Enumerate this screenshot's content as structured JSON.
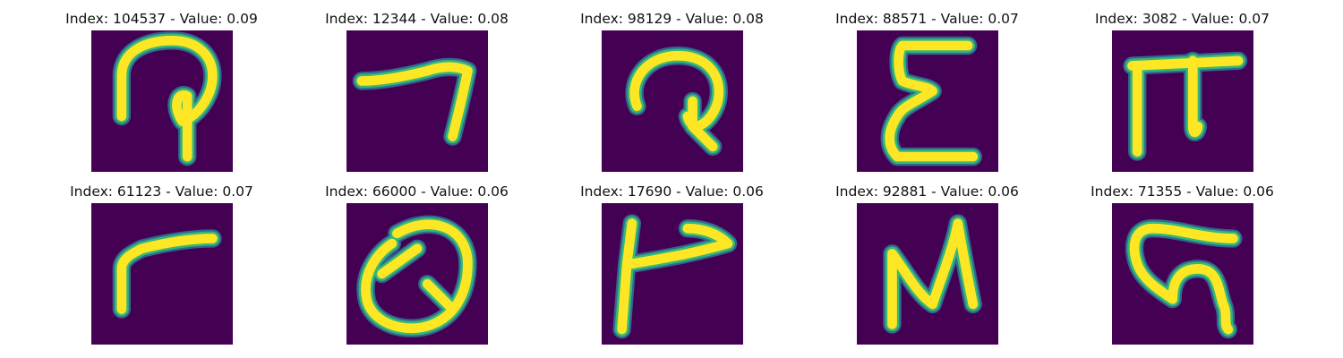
{
  "colors": {
    "background": "#440154",
    "stroke_core": "#fde725",
    "stroke_mid": "#35b779",
    "stroke_edge": "#31688e"
  },
  "panels": [
    {
      "title": "Index: 104537 - Value: 0.09",
      "glyph": "hook-loop-icon"
    },
    {
      "title": "Index: 12344 - Value: 0.08",
      "glyph": "hook-seven-icon"
    },
    {
      "title": "Index: 98129 - Value: 0.08",
      "glyph": "curled-loop-icon"
    },
    {
      "title": "Index: 88571 - Value: 0.07",
      "glyph": "sigma-icon"
    },
    {
      "title": "Index: 3082 - Value: 0.07",
      "glyph": "pi-icon"
    },
    {
      "title": "Index: 61123 - Value: 0.07",
      "glyph": "gamma-icon"
    },
    {
      "title": "Index: 66000 - Value: 0.06",
      "glyph": "looped-q-icon"
    },
    {
      "title": "Index: 17690 - Value: 0.06",
      "glyph": "flag-stroke-icon"
    },
    {
      "title": "Index: 92881 - Value: 0.06",
      "glyph": "n-stroke-icon"
    },
    {
      "title": "Index: 71355 - Value: 0.06",
      "glyph": "s-loop-icon"
    }
  ]
}
